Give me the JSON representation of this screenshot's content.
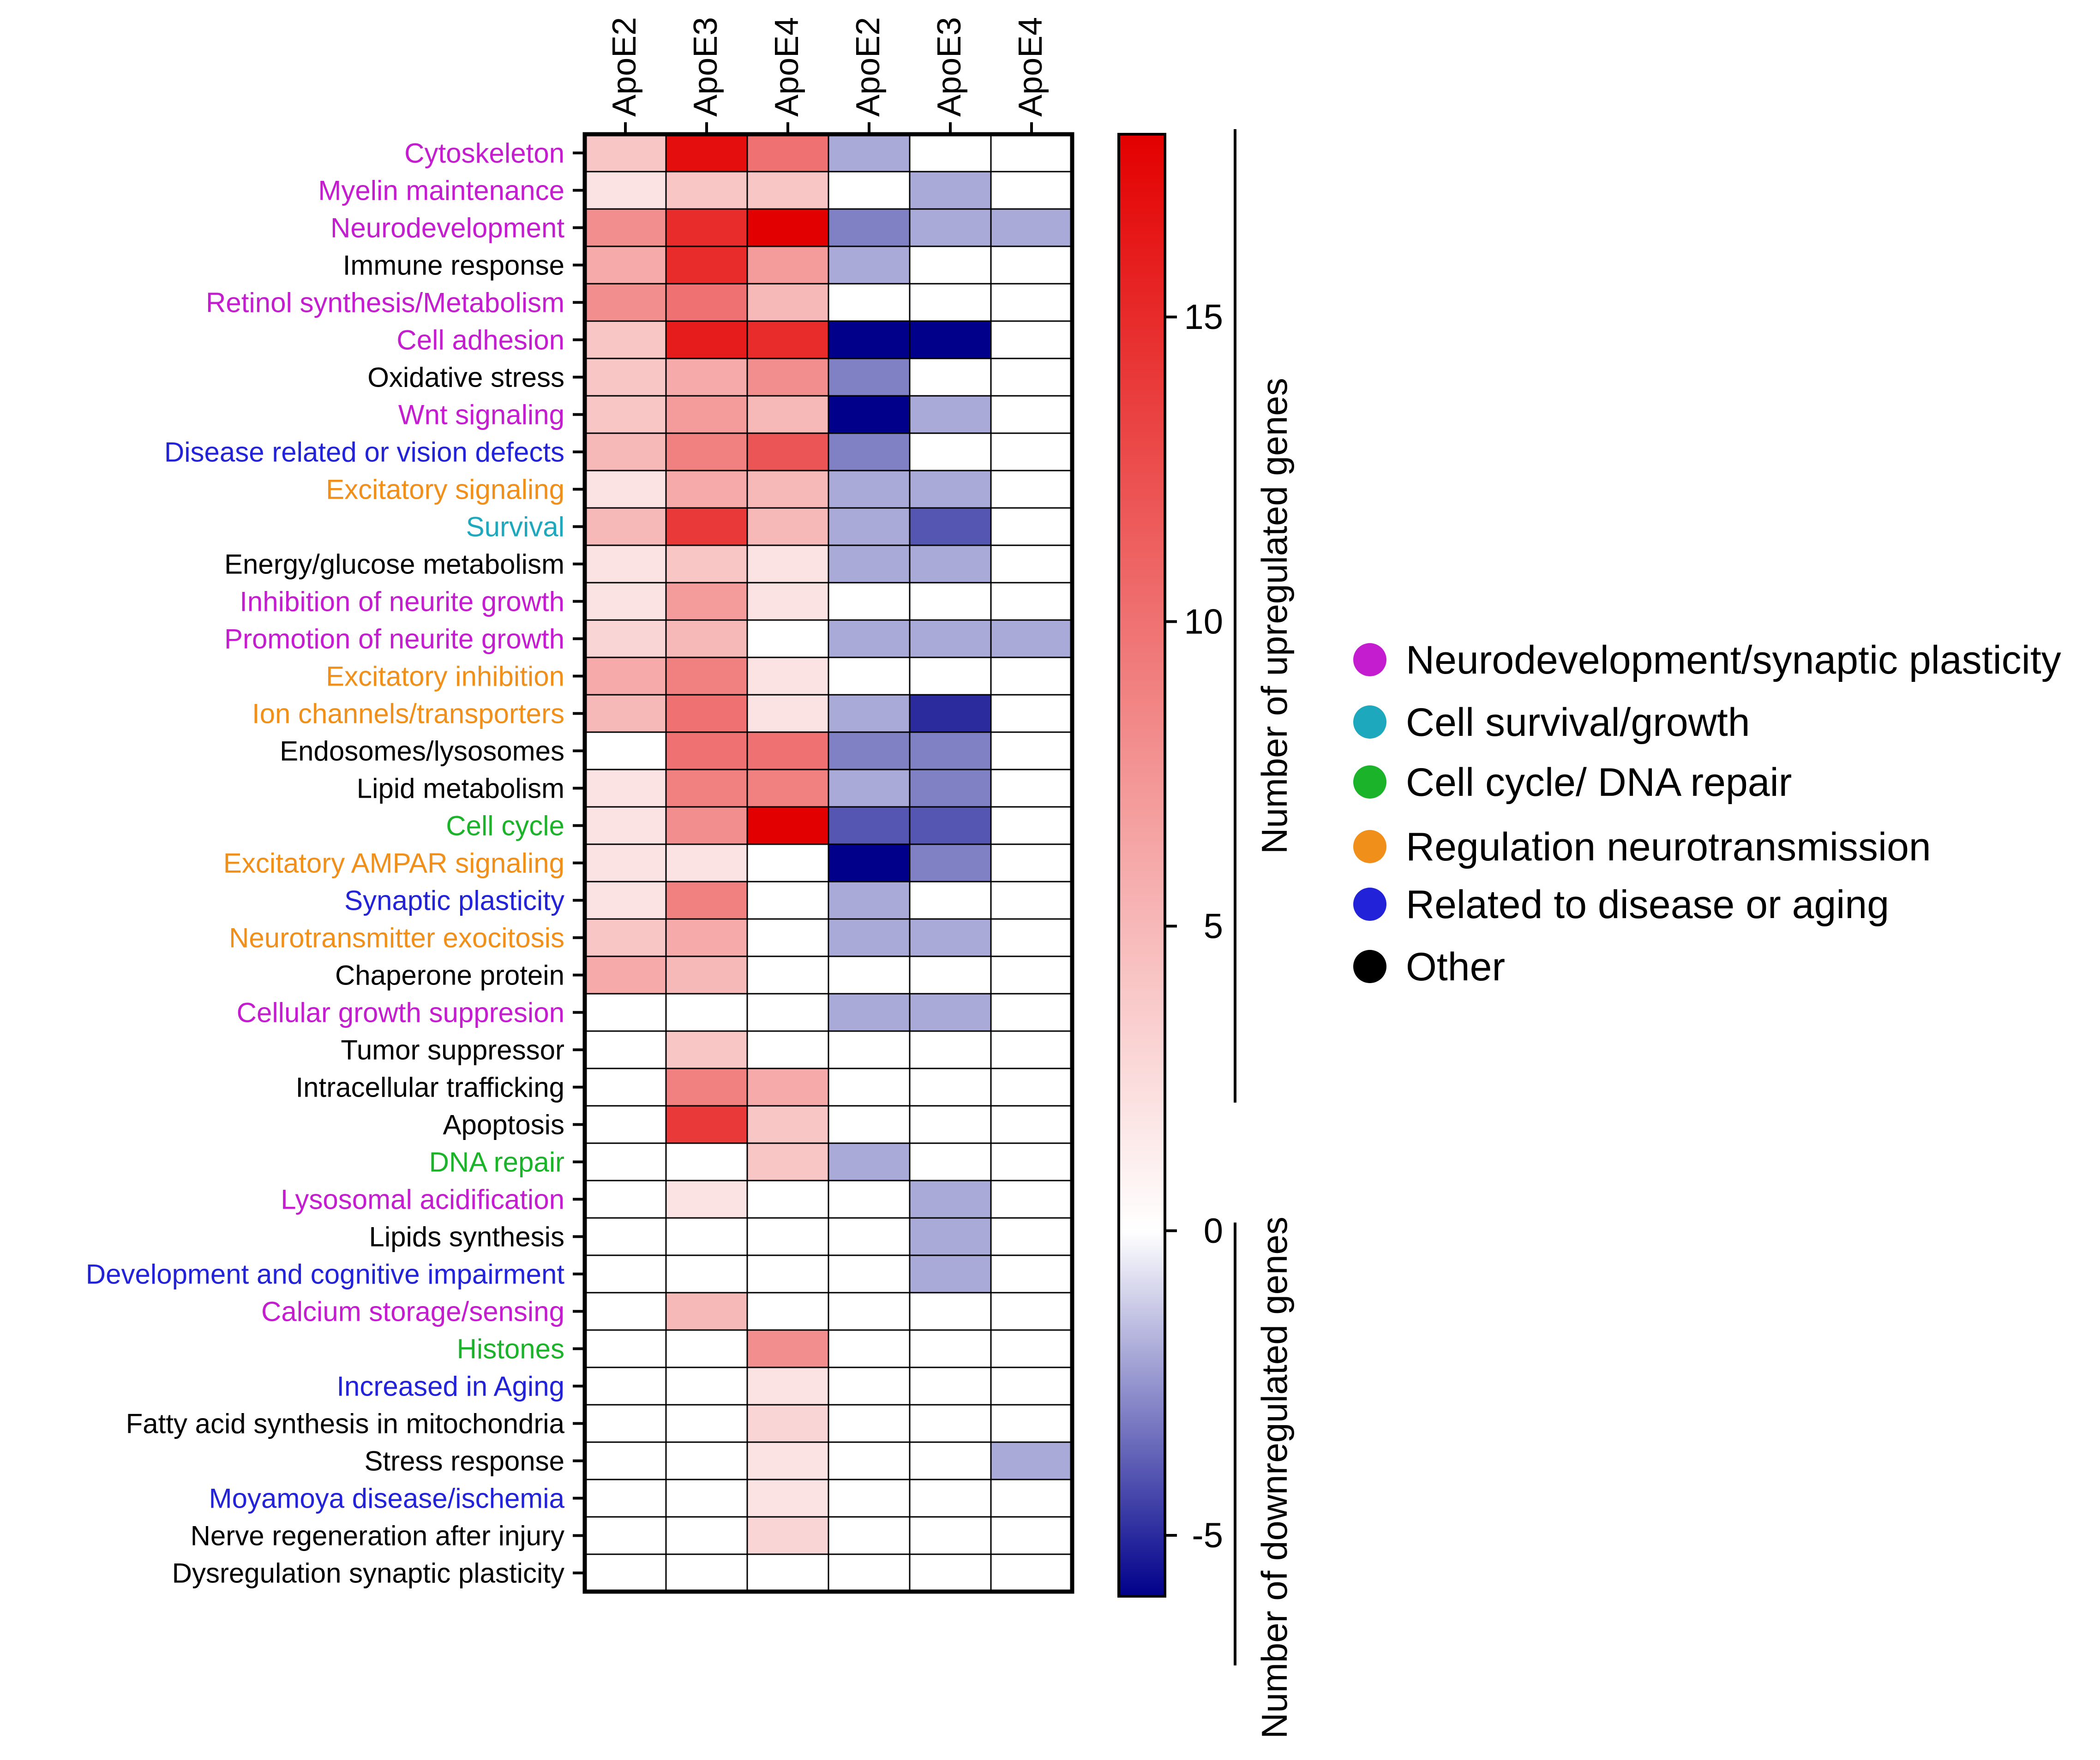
{
  "chart_data": {
    "type": "heatmap",
    "title": "",
    "columns": [
      "ApoE2",
      "ApoE3",
      "ApoE4",
      "ApoE2",
      "ApoE3",
      "ApoE4"
    ],
    "categories": {
      "neuro": {
        "label": "Neurodevelopment/synaptic plasticity",
        "color": "#c41ccf"
      },
      "survival": {
        "label": "Cell survival/growth",
        "color": "#1ea8be"
      },
      "cycle": {
        "label": "Cell cycle/ DNA repair",
        "color": "#1bb32a"
      },
      "neurotrans": {
        "label": "Regulation neurotransmission",
        "color": "#f0901a"
      },
      "disease": {
        "label": "Related to disease or aging",
        "color": "#2222d8"
      },
      "other": {
        "label": "Other",
        "color": "#000000"
      }
    },
    "legend_order": [
      "neuro",
      "survival",
      "cycle",
      "neurotrans",
      "disease",
      "other"
    ],
    "rows": [
      {
        "label": "Cytoskeleton",
        "category": "neuro",
        "values": [
          4,
          17,
          10,
          -2,
          0,
          0
        ]
      },
      {
        "label": "Myelin maintenance",
        "category": "neuro",
        "values": [
          2,
          4,
          4,
          0,
          -2,
          0
        ]
      },
      {
        "label": "Neurodevelopment",
        "category": "neuro",
        "values": [
          8,
          15,
          18,
          -3,
          -2,
          -2
        ]
      },
      {
        "label": "Immune response",
        "category": "other",
        "values": [
          6,
          15,
          7,
          -2,
          0,
          0
        ]
      },
      {
        "label": "Retinol synthesis/Metabolism",
        "category": "neuro",
        "values": [
          8,
          10,
          5,
          0,
          0,
          0
        ]
      },
      {
        "label": "Cell adhesion",
        "category": "neuro",
        "values": [
          4,
          16,
          15,
          -6,
          -6,
          0
        ]
      },
      {
        "label": "Oxidative stress",
        "category": "other",
        "values": [
          4,
          6,
          8,
          -3,
          0,
          0
        ]
      },
      {
        "label": "Wnt signaling",
        "category": "neuro",
        "values": [
          4,
          7,
          5,
          -6,
          -2,
          0
        ]
      },
      {
        "label": "Disease related or vision defects",
        "category": "disease",
        "values": [
          5,
          9,
          12,
          -3,
          0,
          0
        ]
      },
      {
        "label": "Excitatory signaling",
        "category": "neurotrans",
        "values": [
          2,
          6,
          5,
          -2,
          -2,
          0
        ]
      },
      {
        "label": "Survival",
        "category": "survival",
        "values": [
          5,
          14,
          5,
          -2,
          -4,
          0
        ]
      },
      {
        "label": "Energy/glucose metabolism",
        "category": "other",
        "values": [
          2,
          4,
          2,
          -2,
          -2,
          0
        ]
      },
      {
        "label": "Inhibition of neurite growth",
        "category": "neuro",
        "values": [
          2,
          7,
          2,
          0,
          0,
          0
        ]
      },
      {
        "label": "Promotion of neurite growth",
        "category": "neuro",
        "values": [
          3,
          5,
          0,
          -2,
          -2,
          -2
        ]
      },
      {
        "label": "Excitatory inhibition",
        "category": "neurotrans",
        "values": [
          6,
          9,
          2,
          0,
          0,
          0
        ]
      },
      {
        "label": "Ion channels/transporters",
        "category": "neurotrans",
        "values": [
          5,
          10,
          2,
          -2,
          -5,
          0
        ]
      },
      {
        "label": "Endosomes/lysosomes",
        "category": "other",
        "values": [
          0,
          10,
          10,
          -3,
          -3,
          0
        ]
      },
      {
        "label": "Lipid metabolism",
        "category": "other",
        "values": [
          2,
          9,
          9,
          -2,
          -3,
          0
        ]
      },
      {
        "label": "Cell cycle",
        "category": "cycle",
        "values": [
          2,
          8,
          18,
          -4,
          -4,
          0
        ]
      },
      {
        "label": "Excitatory AMPAR signaling",
        "category": "neurotrans",
        "values": [
          2,
          2,
          0,
          -6,
          -3,
          0
        ]
      },
      {
        "label": "Synaptic plasticity",
        "category": "disease",
        "values": [
          2,
          9,
          0,
          -2,
          0,
          0
        ]
      },
      {
        "label": "Neurotransmitter exocitosis",
        "category": "neurotrans",
        "values": [
          4,
          6,
          0,
          -2,
          -2,
          0
        ]
      },
      {
        "label": "Chaperone protein",
        "category": "other",
        "values": [
          6,
          5,
          0,
          0,
          0,
          0
        ]
      },
      {
        "label": "Cellular growth suppresion",
        "category": "neuro",
        "values": [
          0,
          0,
          0,
          -2,
          -2,
          0
        ]
      },
      {
        "label": "Tumor suppressor",
        "category": "other",
        "values": [
          0,
          4,
          0,
          0,
          0,
          0
        ]
      },
      {
        "label": "Intracellular trafficking",
        "category": "other",
        "values": [
          0,
          9,
          6,
          0,
          0,
          0
        ]
      },
      {
        "label": "Apoptosis",
        "category": "other",
        "values": [
          0,
          14,
          4,
          0,
          0,
          0
        ]
      },
      {
        "label": "DNA repair",
        "category": "cycle",
        "values": [
          0,
          0,
          4,
          -2,
          0,
          0
        ]
      },
      {
        "label": "Lysosomal acidification",
        "category": "neuro",
        "values": [
          0,
          2,
          0,
          0,
          -2,
          0
        ]
      },
      {
        "label": "Lipids synthesis",
        "category": "other",
        "values": [
          0,
          0,
          0,
          0,
          -2,
          0
        ]
      },
      {
        "label": "Development and cognitive impairment",
        "category": "disease",
        "values": [
          0,
          0,
          0,
          0,
          -2,
          0
        ]
      },
      {
        "label": "Calcium storage/sensing",
        "category": "neuro",
        "values": [
          0,
          5,
          0,
          0,
          0,
          0
        ]
      },
      {
        "label": "Histones",
        "category": "cycle",
        "values": [
          0,
          0,
          8,
          0,
          0,
          0
        ]
      },
      {
        "label": "Increased in Aging",
        "category": "disease",
        "values": [
          0,
          0,
          2,
          0,
          0,
          0
        ]
      },
      {
        "label": "Fatty acid synthesis in mitochondria",
        "category": "other",
        "values": [
          0,
          0,
          3,
          0,
          0,
          0
        ]
      },
      {
        "label": "Stress response",
        "category": "other",
        "values": [
          0,
          0,
          2,
          0,
          0,
          -2
        ]
      },
      {
        "label": "Moyamoya disease/ischemia",
        "category": "disease",
        "values": [
          0,
          0,
          2,
          0,
          0,
          0
        ]
      },
      {
        "label": "Nerve regeneration after injury",
        "category": "other",
        "values": [
          0,
          0,
          3,
          0,
          0,
          0
        ]
      },
      {
        "label": "Dysregulation synaptic plasticity",
        "category": "other",
        "values": [
          0,
          0,
          0,
          0,
          0,
          0
        ]
      }
    ],
    "colorscale": {
      "range": [
        -6,
        18
      ],
      "ticks": [
        15,
        10,
        5,
        0,
        -5
      ],
      "stops": [
        {
          "value": -6,
          "color": "#00008b"
        },
        {
          "value": 0,
          "color": "#ffffff"
        },
        {
          "value": 18,
          "color": "#e30000"
        }
      ]
    },
    "colorbar_labels": {
      "up": "Number of upregulated genes",
      "down": "Number of downregulated genes"
    }
  }
}
